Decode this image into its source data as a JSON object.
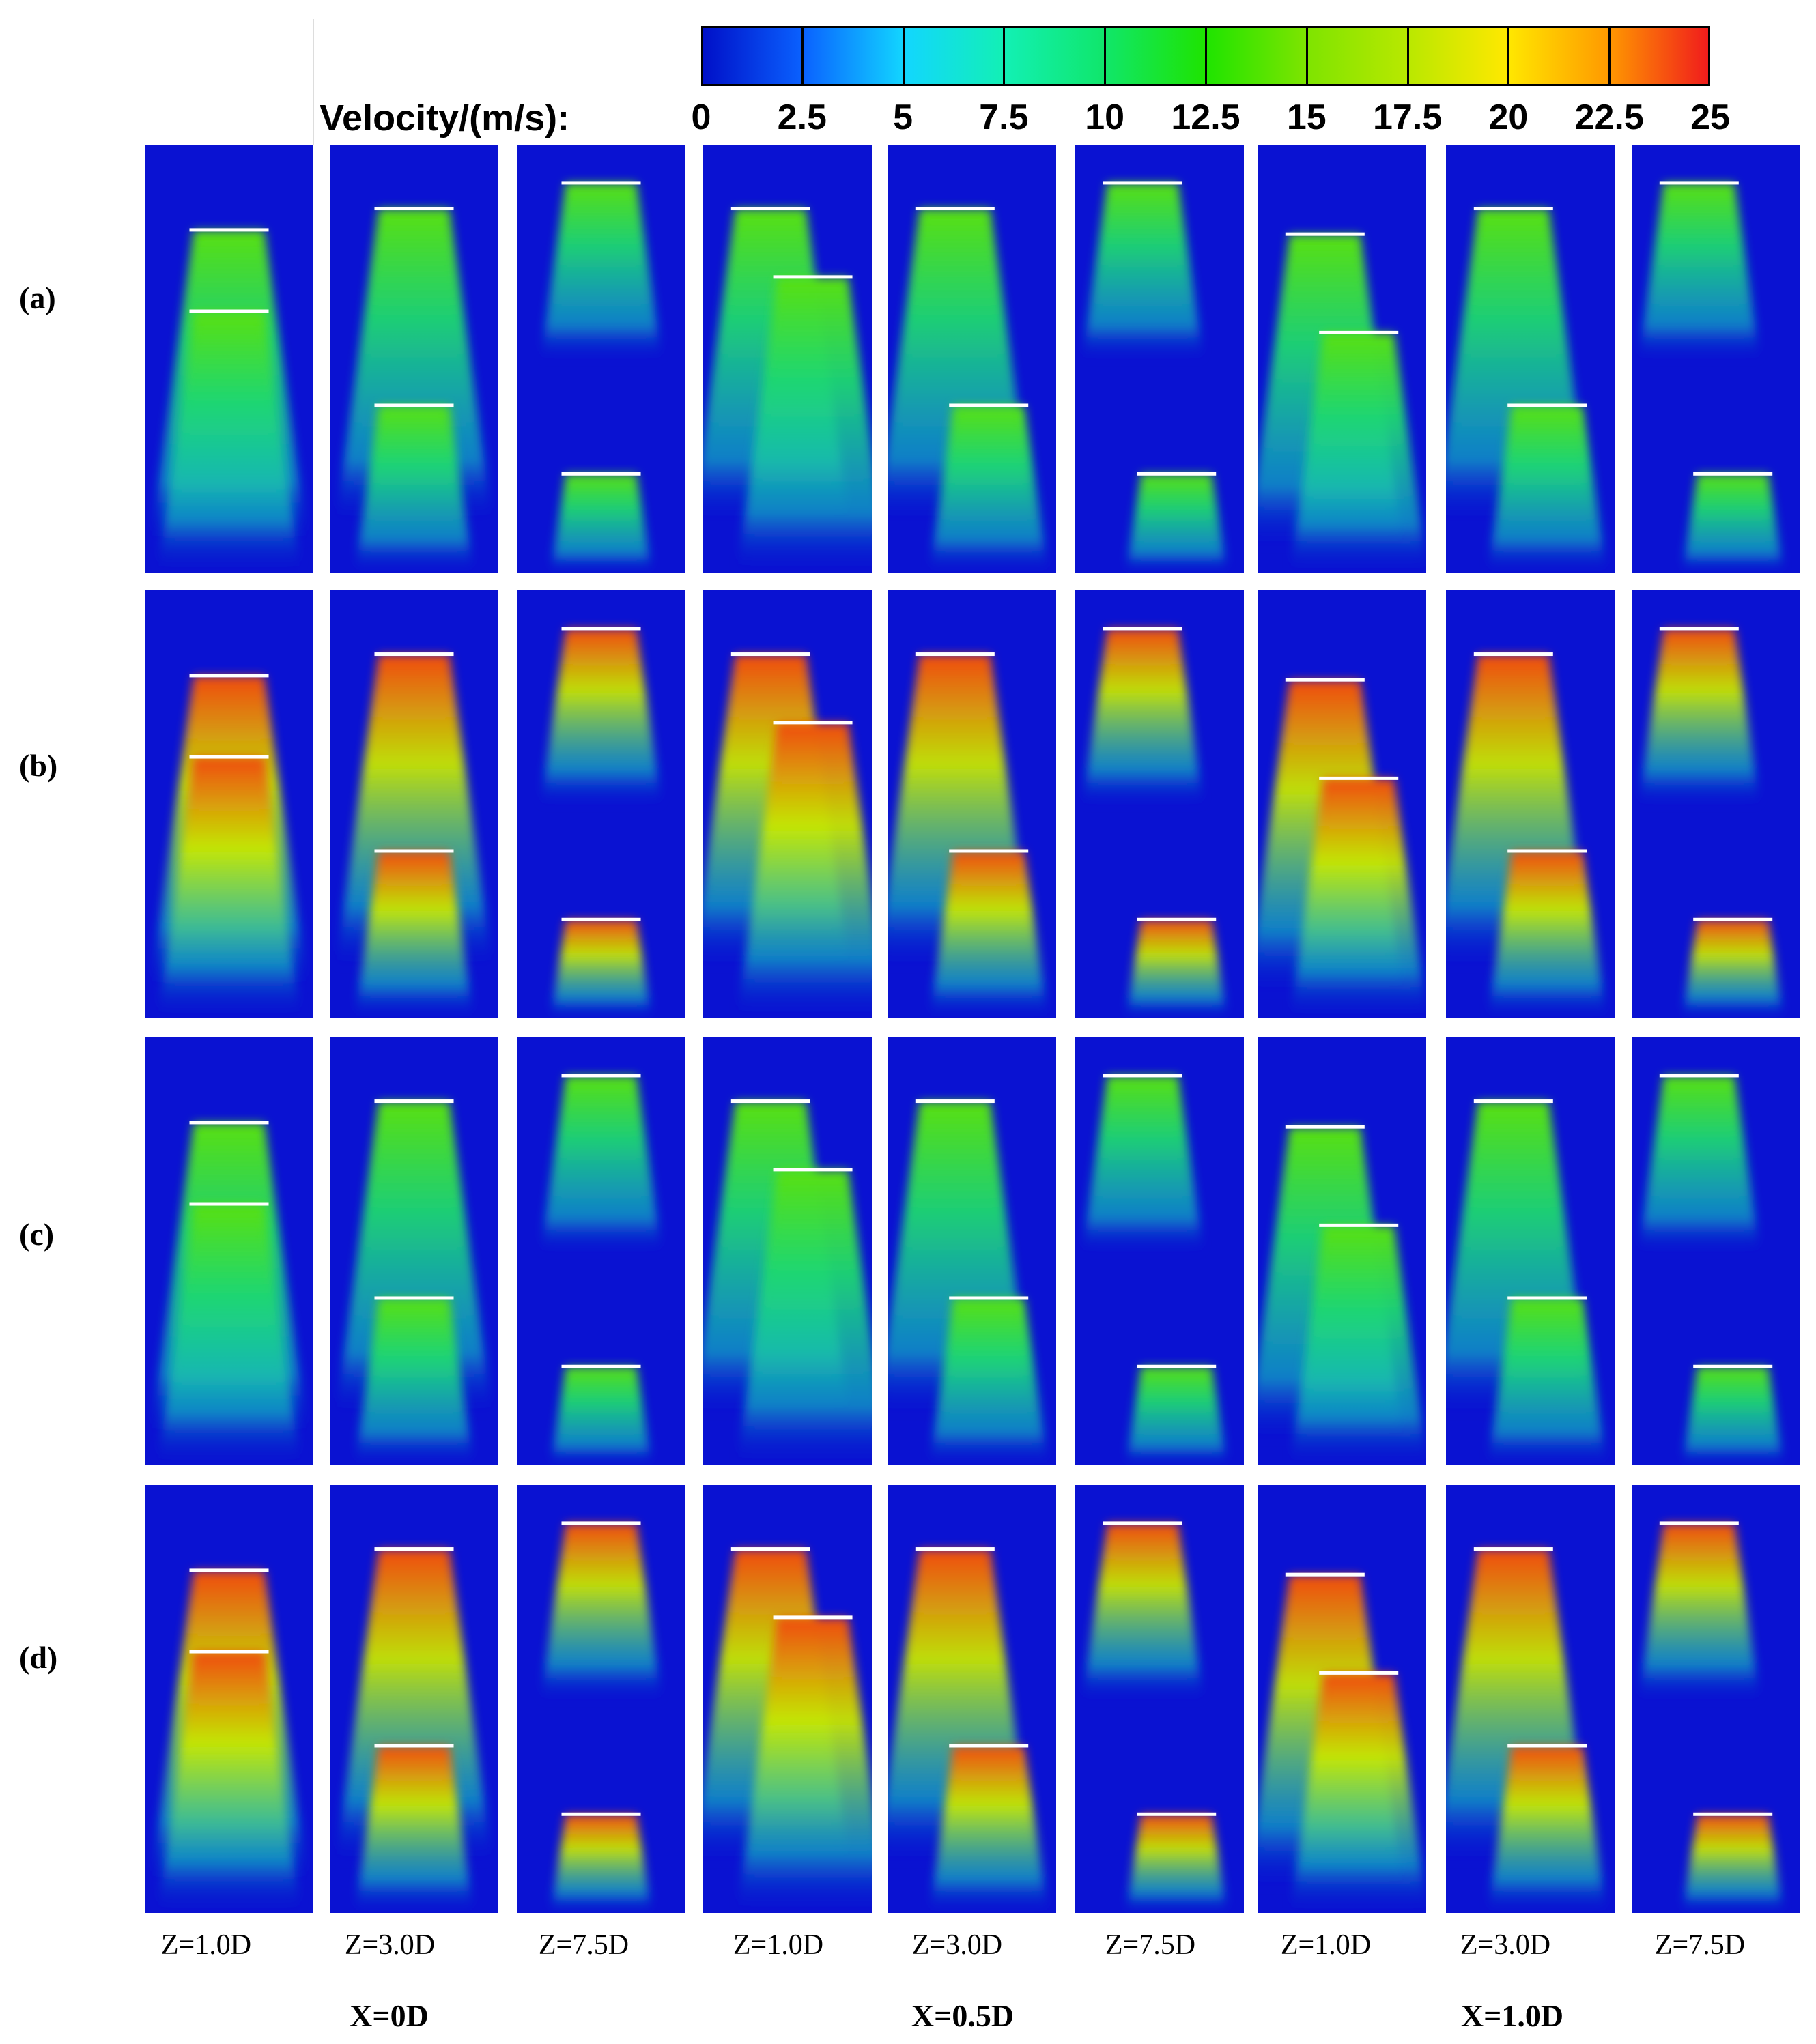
{
  "legend": {
    "label": "Velocity/(m/s):",
    "ticks": [
      "0",
      "2.5",
      "5",
      "7.5",
      "10",
      "12.5",
      "15",
      "17.5",
      "20",
      "22.5",
      "25"
    ],
    "min": 0,
    "max": 25,
    "colors": [
      "#0010c8",
      "#0a62ff",
      "#12d6ff",
      "#12f0b4",
      "#10e66a",
      "#1ee400",
      "#7ee400",
      "#b8e800",
      "#ffe800",
      "#ff9a00",
      "#f01c1c"
    ]
  },
  "rows": [
    {
      "label": "(a)",
      "intensity": 0.45
    },
    {
      "label": "(b)",
      "intensity": 0.85
    },
    {
      "label": "(c)",
      "intensity": 0.5
    },
    {
      "label": "(d)",
      "intensity": 0.8
    }
  ],
  "columns": [
    {
      "z_label": "Z=1.0D"
    },
    {
      "z_label": "Z=3.0D"
    },
    {
      "z_label": "Z=7.5D"
    },
    {
      "z_label": "Z=1.0D"
    },
    {
      "z_label": "Z=3.0D"
    },
    {
      "z_label": "Z=7.5D"
    },
    {
      "z_label": "Z=1.0D"
    },
    {
      "z_label": "Z=3.0D"
    },
    {
      "z_label": "Z=7.5D"
    }
  ],
  "groups": [
    {
      "label": "X=0D"
    },
    {
      "label": "X=0.5D"
    },
    {
      "label": "X=1.0D"
    }
  ]
}
